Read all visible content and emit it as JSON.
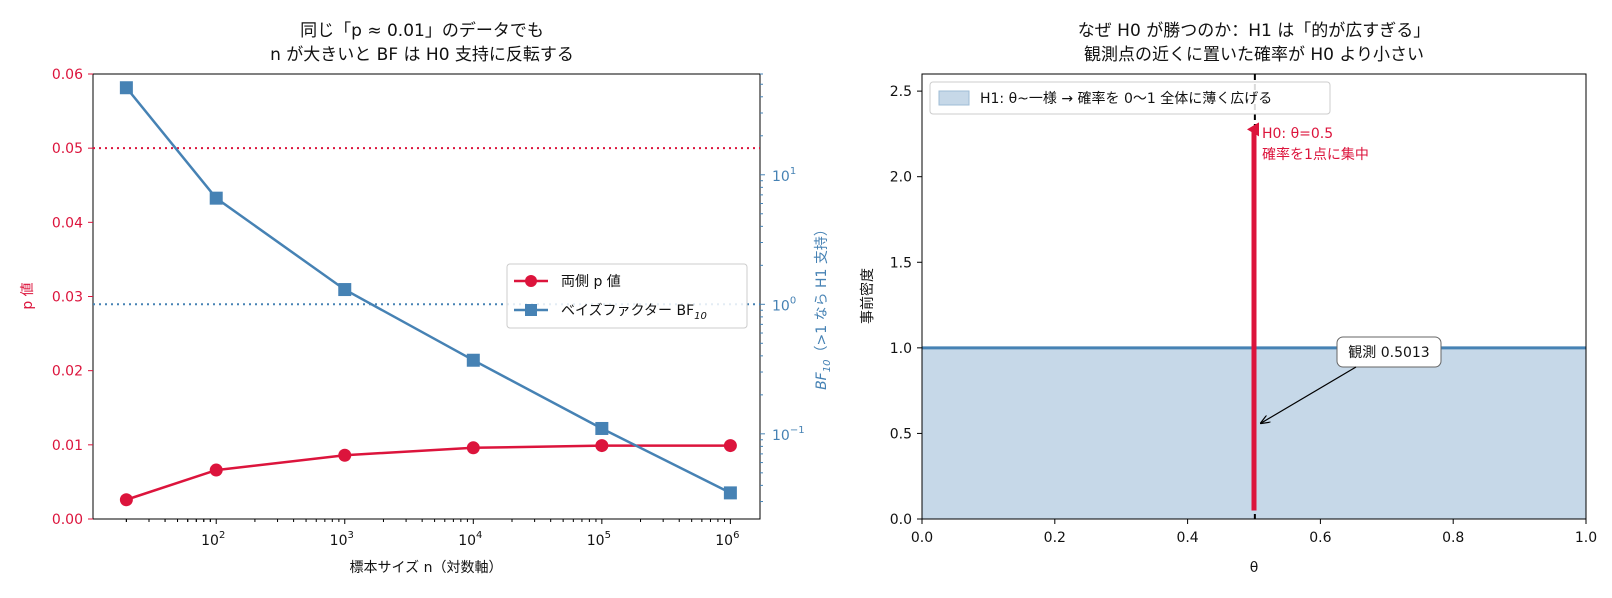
{
  "chart_data": [
    {
      "type": "line",
      "title_lines": [
        "同じ「p ≈ 0.01」のデータでも",
        "n が大きいと BF は H0 支持に反転する"
      ],
      "xlabel": "標本サイズ n（対数軸）",
      "ylabel_left": "p 値",
      "ylabel_right_base": "BF",
      "ylabel_right_sub": "10",
      "ylabel_right_rest": "（>1 なら H1 支持）",
      "x_scale": "log",
      "x_ticks": [
        {
          "value": 100,
          "base": "10",
          "exp": "2"
        },
        {
          "value": 1000,
          "base": "10",
          "exp": "3"
        },
        {
          "value": 10000,
          "base": "10",
          "exp": "4"
        },
        {
          "value": 100000,
          "base": "10",
          "exp": "5"
        },
        {
          "value": 1000000,
          "base": "10",
          "exp": "6"
        }
      ],
      "xlim": [
        11,
        1700000
      ],
      "ylim_left": [
        0,
        0.06
      ],
      "y_ticks_left": [
        "0.00",
        "0.01",
        "0.02",
        "0.03",
        "0.04",
        "0.05",
        "0.06"
      ],
      "right_scale": "log",
      "ylim_right": [
        0.022,
        60
      ],
      "y_ticks_right": [
        {
          "value": 0.1,
          "base": "10",
          "exp": "−1"
        },
        {
          "value": 1,
          "base": "10",
          "exp": "0"
        },
        {
          "value": 10,
          "base": "10",
          "exp": "1"
        }
      ],
      "x": [
        20,
        100,
        1000,
        10000,
        100000,
        1000000
      ],
      "series": [
        {
          "name": "両側 p 値",
          "axis": "left",
          "marker": "circle",
          "color": "#dc143c",
          "values": [
            0.0026,
            0.0066,
            0.0086,
            0.0096,
            0.0099,
            0.0099
          ]
        },
        {
          "name": "ベイズファクター BF",
          "name_sub": "10",
          "axis": "right",
          "marker": "square",
          "color": "#4682b4",
          "values": [
            47,
            6.6,
            1.3,
            0.37,
            0.11,
            0.035
          ]
        }
      ],
      "hlines": [
        {
          "axis": "left",
          "value": 0.05,
          "color": "#dc143c",
          "style": "dotted"
        },
        {
          "axis": "right",
          "value": 1,
          "color": "#4682b4",
          "style": "dotted"
        }
      ],
      "legend_position": "center-right"
    },
    {
      "type": "area",
      "title_lines": [
        "なぜ H0 が勝つのか：H1 は「的が広すぎる」",
        "観測点の近くに置いた確率が H0 より小さい"
      ],
      "xlabel": "θ",
      "ylabel": "事前密度",
      "xlim": [
        0,
        1
      ],
      "ylim": [
        0,
        2.6
      ],
      "x_ticks": [
        "0.0",
        "0.2",
        "0.4",
        "0.6",
        "0.8",
        "1.0"
      ],
      "y_ticks": [
        "0.0",
        "0.5",
        "1.0",
        "1.5",
        "2.0",
        "2.5"
      ],
      "uniform_density": 1.0,
      "uniform_color": "#4682b4",
      "fill_color": "#c6d8e8",
      "legend": "H1: θ~一様 → 確率を 0〜1 全体に薄く広げる",
      "legend_position": "top-left",
      "spike": {
        "x": 0.5,
        "height": 2.3,
        "color": "#dc143c",
        "label_lines": [
          "H0: θ=0.5",
          "確率を1点に集中"
        ]
      },
      "observed": {
        "x": 0.5013,
        "y": 0.56,
        "label": "観測 0.5013",
        "vline_color": "#000000"
      }
    }
  ]
}
